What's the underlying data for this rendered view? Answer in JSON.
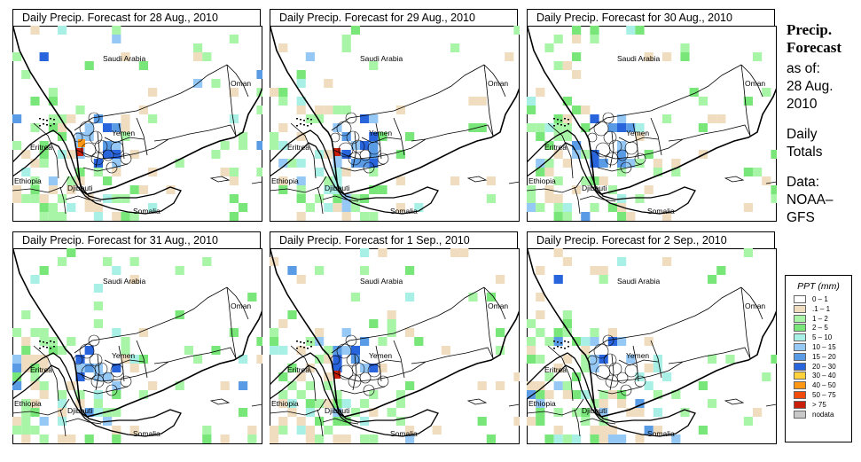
{
  "panels": [
    {
      "title": "Daily Precip. Forecast for  28 Aug., 2010"
    },
    {
      "title": "Daily Precip. Forecast for  29 Aug., 2010"
    },
    {
      "title": "Daily Precip. Forecast for  30 Aug., 2010"
    },
    {
      "title": "Daily Precip. Forecast for  31 Aug., 2010"
    },
    {
      "title": "Daily Precip. Forecast for  1 Sep., 2010"
    },
    {
      "title": "Daily Precip. Forecast for  2 Sep., 2010"
    }
  ],
  "map_labels": {
    "saudi": "Saudi Arabia",
    "oman": "Oman",
    "yemen": "Yemen",
    "eritrea": "Eritrea",
    "ethiopia": "Ethiopia",
    "djibouti": "Djibouti",
    "somalia": "Somalia"
  },
  "side": {
    "heading1": "Precip.",
    "heading2": "Forecast",
    "asof": "as of:",
    "date1": "28 Aug.",
    "date2": "2010",
    "daily1": "Daily",
    "daily2": "Totals",
    "data1": "Data:",
    "data2": "NOAA–",
    "data3": "GFS"
  },
  "legend": {
    "title": "PPT (mm)",
    "items": [
      {
        "label": "0 – 1",
        "color": "#ffffff"
      },
      {
        "label": ".1 – 1",
        "color": "#f0dcbe"
      },
      {
        "label": "1 – 2",
        "color": "#a8f5a8"
      },
      {
        "label": "2 – 5",
        "color": "#78e678"
      },
      {
        "label": "5 – 10",
        "color": "#a8f0e6"
      },
      {
        "label": "10 – 15",
        "color": "#96c8f5"
      },
      {
        "label": "15 – 20",
        "color": "#5a9be6"
      },
      {
        "label": "20 – 30",
        "color": "#2864dc"
      },
      {
        "label": "30 – 40",
        "color": "#ffd23c"
      },
      {
        "label": "40 – 50",
        "color": "#ff9614"
      },
      {
        "label": "50 – 75",
        "color": "#f04b0a"
      },
      {
        "label": "> 75",
        "color": "#c81e0a"
      },
      {
        "label": "nodata",
        "color": "#c8c8c8"
      }
    ]
  }
}
